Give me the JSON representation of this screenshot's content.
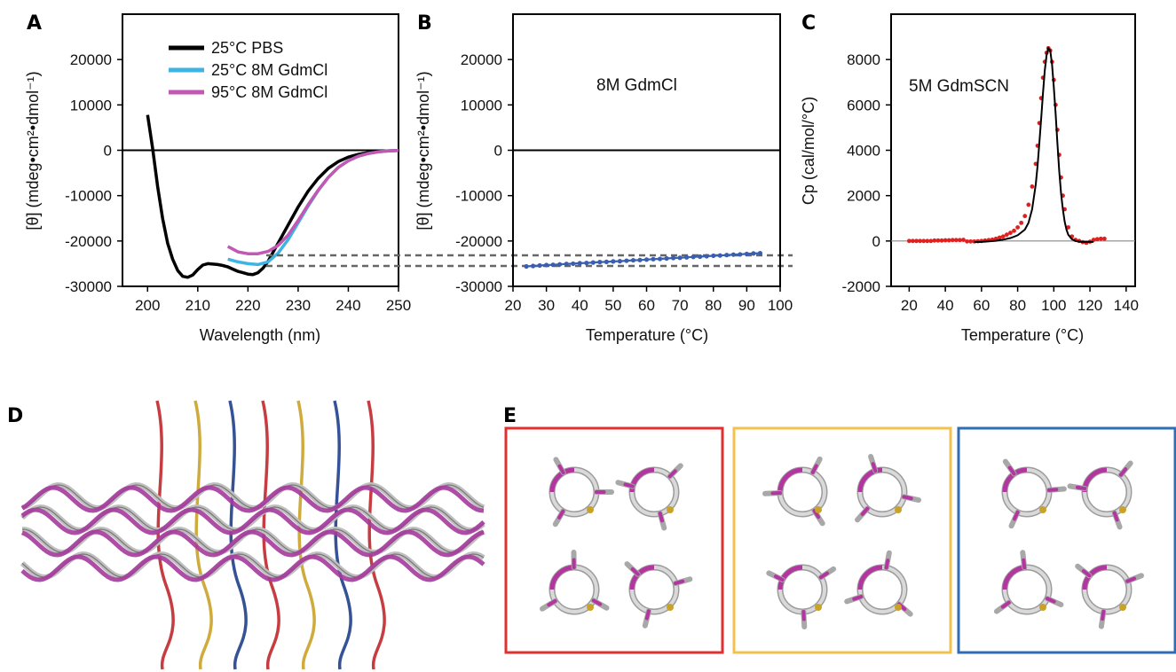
{
  "panels": {
    "A": "A",
    "B": "B",
    "C": "C",
    "D": "D",
    "E": "E"
  },
  "chart_data": [
    {
      "id": "A",
      "type": "line",
      "title": "",
      "xlabel": "Wavelength (nm)",
      "ylabel": "[θ] (mdeg•cm²•dmol⁻¹)",
      "xlim": [
        195,
        250
      ],
      "ylim": [
        -30000,
        30000
      ],
      "xticks": [
        200,
        210,
        220,
        230,
        240,
        250
      ],
      "yticks": [
        -30000,
        -20000,
        -10000,
        0,
        10000,
        20000
      ],
      "legend_position": "top-right",
      "series": [
        {
          "name": "25°C PBS",
          "color": "#000000",
          "x": [
            200,
            201,
            202,
            203,
            204,
            205,
            206,
            207,
            208,
            209,
            210,
            211,
            212,
            213,
            214,
            215,
            216,
            217,
            218,
            219,
            220,
            221,
            222,
            223,
            224,
            225,
            226,
            227,
            228,
            230,
            232,
            234,
            236,
            238,
            240,
            242,
            244,
            246,
            248,
            250
          ],
          "y": [
            7800,
            500,
            -8000,
            -15000,
            -20500,
            -24000,
            -26500,
            -27800,
            -28000,
            -27500,
            -26300,
            -25300,
            -25000,
            -25100,
            -25200,
            -25400,
            -25700,
            -26200,
            -26700,
            -27000,
            -27300,
            -27400,
            -27000,
            -26000,
            -24500,
            -22500,
            -20500,
            -18500,
            -16500,
            -12500,
            -9000,
            -6200,
            -4000,
            -2500,
            -1500,
            -900,
            -500,
            -250,
            -120,
            -50
          ]
        },
        {
          "name": "25°C 8M GdmCl",
          "color": "#3fb4e4",
          "x": [
            216,
            218,
            220,
            222,
            224,
            226,
            228,
            230,
            232,
            234,
            236,
            238,
            240,
            242,
            244,
            246,
            248,
            250
          ],
          "y": [
            -24000,
            -24600,
            -25000,
            -25200,
            -24600,
            -22700,
            -19700,
            -16000,
            -12300,
            -8900,
            -6000,
            -3800,
            -2300,
            -1300,
            -700,
            -350,
            -150,
            -50
          ]
        },
        {
          "name": "95°C 8M GdmCl",
          "color": "#c257b4",
          "x": [
            216,
            218,
            220,
            222,
            224,
            226,
            228,
            230,
            232,
            234,
            236,
            238,
            240,
            242,
            244,
            246,
            248,
            250
          ],
          "y": [
            -21200,
            -22400,
            -22800,
            -22800,
            -22300,
            -21000,
            -18700,
            -15500,
            -12000,
            -8800,
            -6000,
            -3800,
            -2300,
            -1300,
            -700,
            -350,
            -150,
            -50
          ]
        }
      ]
    },
    {
      "id": "B",
      "type": "scatter",
      "title": "",
      "annotation": "8M GdmCl",
      "xlabel": "Temperature (°C)",
      "ylabel": "[θ] (mdeg•cm²•dmol⁻¹)",
      "xlim": [
        20,
        100
      ],
      "ylim": [
        -30000,
        30000
      ],
      "xticks": [
        20,
        30,
        40,
        50,
        60,
        70,
        80,
        90,
        100
      ],
      "yticks": [
        -30000,
        -20000,
        -10000,
        0,
        10000,
        20000
      ],
      "series": [
        {
          "name": "",
          "color": "#3a5fb0",
          "x": [
            24,
            26,
            28,
            30,
            32,
            34,
            36,
            38,
            40,
            42,
            44,
            46,
            48,
            50,
            52,
            54,
            56,
            58,
            60,
            62,
            64,
            66,
            68,
            70,
            72,
            74,
            76,
            78,
            80,
            82,
            84,
            86,
            88,
            90,
            92,
            94
          ],
          "y": [
            -25600,
            -25500,
            -25400,
            -25300,
            -25250,
            -25150,
            -25050,
            -25000,
            -24900,
            -24850,
            -24750,
            -24650,
            -24600,
            -24500,
            -24450,
            -24350,
            -24250,
            -24200,
            -24100,
            -24000,
            -23950,
            -23850,
            -23750,
            -23700,
            -23600,
            -23500,
            -23450,
            -23350,
            -23250,
            -23200,
            -23100,
            -23000,
            -22950,
            -22850,
            -22750,
            -22700
          ]
        }
      ]
    },
    {
      "id": "C",
      "type": "scatter",
      "title": "",
      "annotation": "5M GdmSCN",
      "xlabel": "Temperature (°C)",
      "ylabel": "Cp (cal/mol/°C)",
      "xlim": [
        10,
        145
      ],
      "ylim": [
        -2000,
        10000
      ],
      "xticks": [
        20,
        40,
        60,
        80,
        100,
        120,
        140
      ],
      "yticks": [
        -2000,
        0,
        2000,
        4000,
        6000,
        8000
      ],
      "series": [
        {
          "name": "",
          "color": "#e02020",
          "x": [
            20,
            22,
            24,
            26,
            28,
            30,
            32,
            34,
            36,
            38,
            40,
            42,
            44,
            46,
            48,
            50,
            52,
            54,
            56,
            58,
            60,
            62,
            64,
            66,
            68,
            70,
            72,
            74,
            76,
            78,
            80,
            82,
            84,
            86,
            88,
            90,
            91,
            92,
            93,
            94,
            95,
            96,
            97,
            98,
            99,
            100,
            101,
            102,
            103,
            104,
            105,
            106,
            108,
            110,
            112,
            114,
            116,
            118,
            120,
            122,
            124,
            126,
            128
          ],
          "y": [
            0,
            0,
            0,
            0,
            0,
            0,
            0,
            20,
            20,
            20,
            30,
            30,
            40,
            40,
            40,
            50,
            -20,
            -20,
            -20,
            -10,
            0,
            20,
            40,
            60,
            100,
            150,
            200,
            280,
            360,
            450,
            600,
            800,
            1100,
            1600,
            2400,
            3400,
            4200,
            5200,
            6300,
            7200,
            7900,
            8300,
            8500,
            8400,
            7900,
            7100,
            6000,
            4900,
            3800,
            2800,
            2000,
            1400,
            600,
            200,
            50,
            0,
            -50,
            -80,
            -30,
            50,
            80,
            100,
            100
          ]
        },
        {
          "name": "",
          "color": "#000000",
          "x": [
            56,
            60,
            64,
            68,
            72,
            76,
            80,
            84,
            86,
            88,
            90,
            91,
            92,
            93,
            94,
            95,
            96,
            97,
            98,
            99,
            100,
            101,
            102,
            103,
            104,
            105,
            106,
            107,
            108,
            110,
            112,
            114,
            116,
            118,
            120,
            122
          ],
          "y": [
            -50,
            -40,
            -20,
            10,
            60,
            130,
            250,
            500,
            800,
            1400,
            2500,
            3300,
            4300,
            5400,
            6500,
            7500,
            8200,
            8500,
            8400,
            7800,
            6800,
            5600,
            4300,
            3100,
            2100,
            1400,
            850,
            500,
            280,
            80,
            0,
            -30,
            -40,
            -40,
            -40,
            -40
          ]
        }
      ]
    }
  ]
}
